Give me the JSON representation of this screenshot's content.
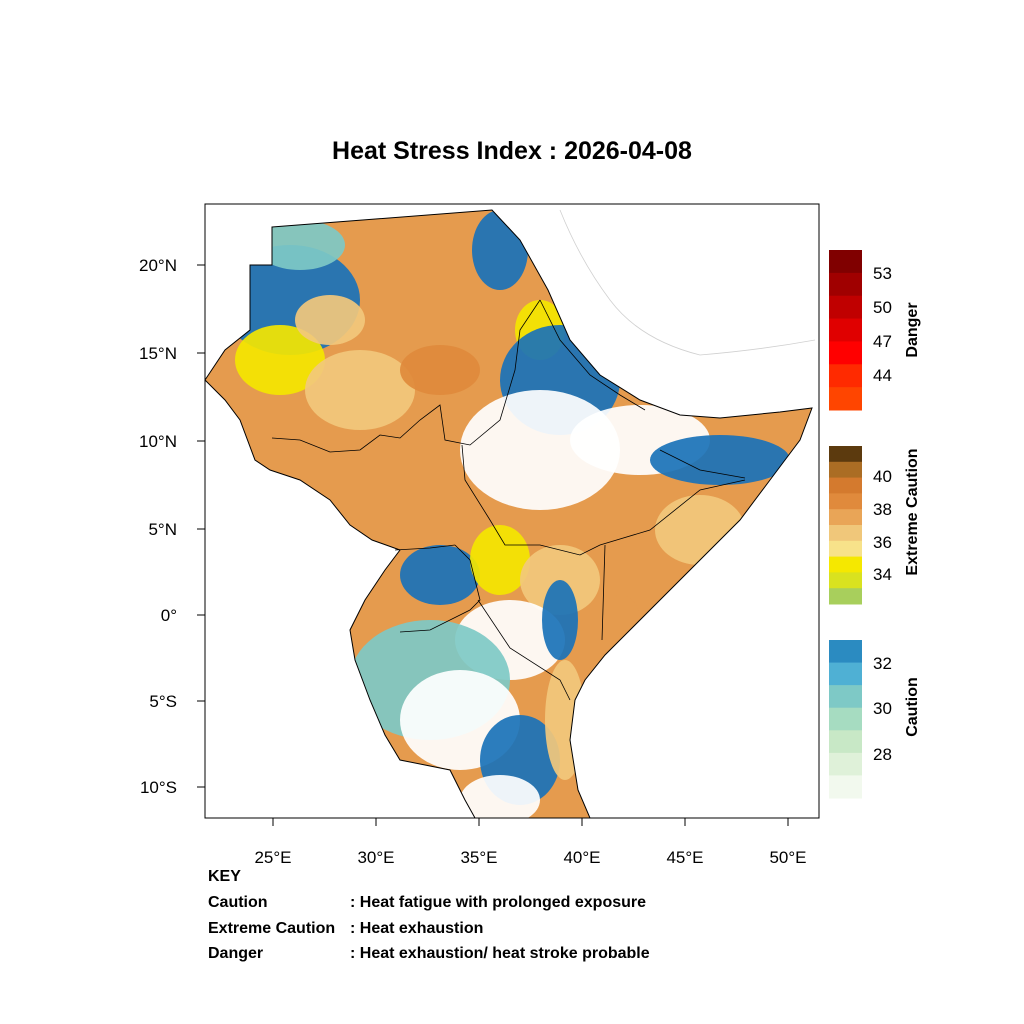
{
  "title": "Heat Stress Index : 2026-04-08",
  "colors": {
    "caution": [
      "#f2f9ee",
      "#dff1d9",
      "#c8e8c6",
      "#a6dcc1",
      "#7ec9c6",
      "#4fb0d4",
      "#2b8bc1"
    ],
    "extreme_caution": [
      "#a8cf5c",
      "#d9e21f",
      "#f5e800",
      "#f7e28a",
      "#f0c77a",
      "#e9a557",
      "#e08a3c",
      "#d47a2e",
      "#ab6d24",
      "#5c3a0e"
    ],
    "danger": [
      "#ff4500",
      "#ff2a00",
      "#ff0000",
      "#e00000",
      "#c00000",
      "#a00000",
      "#800000"
    ],
    "land_hot": "#e59b4e",
    "land_warm": "#f2c87c",
    "land_yellow": "#f4e600",
    "land_blue": "#1a72b8",
    "land_teal": "#7ec9c6",
    "land_white": "#ffffff"
  },
  "map": {
    "lon_ticks": [
      "25°E",
      "30°E",
      "35°E",
      "40°E",
      "45°E",
      "50°E"
    ],
    "lat_ticks": [
      "20°N",
      "15°N",
      "10°N",
      "5°N",
      "0°",
      "5°S",
      "10°S"
    ]
  },
  "colorbars": [
    {
      "name": "Danger",
      "labels": [
        "53",
        "50",
        "47",
        "44"
      ]
    },
    {
      "name": "Extreme Caution",
      "labels": [
        "40",
        "38",
        "36",
        "34"
      ]
    },
    {
      "name": "Caution",
      "labels": [
        "32",
        "30",
        "28"
      ]
    }
  ],
  "key": {
    "heading": "KEY",
    "rows": [
      {
        "term": "Caution",
        "desc": ": Heat fatigue with prolonged exposure"
      },
      {
        "term": "Extreme Caution",
        "desc": " : Heat exhaustion"
      },
      {
        "term": "Danger",
        "desc": ": Heat exhaustion/ heat stroke probable"
      }
    ]
  }
}
